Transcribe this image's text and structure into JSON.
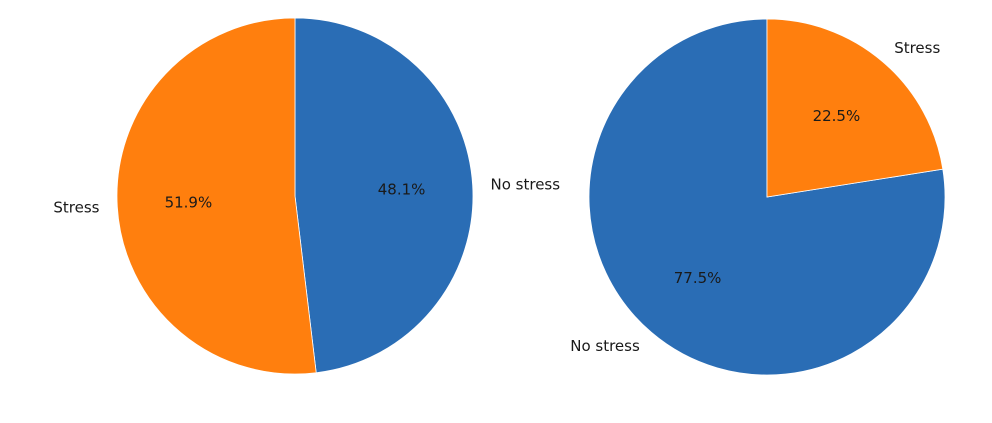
{
  "chart_data": [
    {
      "type": "pie",
      "labels": [
        "No stress",
        "Stress"
      ],
      "values": [
        48.1,
        51.9
      ],
      "autopct": [
        "48.1%",
        "51.9%"
      ],
      "colors": [
        "#2a6db5",
        "#ff7f0e"
      ],
      "start_angle_deg": 90,
      "direction": "clockwise"
    },
    {
      "type": "pie",
      "labels": [
        "No stress",
        "Stress"
      ],
      "values": [
        77.5,
        22.5
      ],
      "autopct": [
        "77.5%",
        "22.5%"
      ],
      "colors": [
        "#2a6db5",
        "#ff7f0e"
      ],
      "start_angle_deg": 90,
      "direction": "counterclockwise"
    }
  ]
}
